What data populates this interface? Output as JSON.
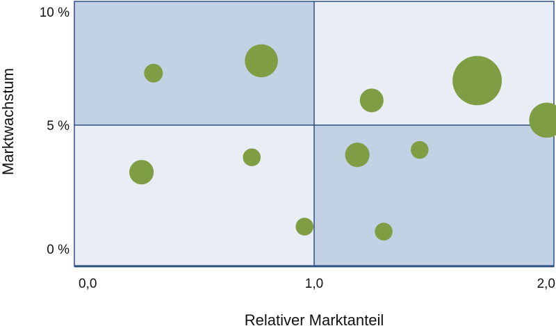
{
  "chart_data": {
    "type": "scatter",
    "variant": "bubble-portfolio-matrix",
    "title": "",
    "xlabel": "Relativer Marktanteil",
    "ylabel": "Marktwachstum",
    "xlim": [
      0,
      2.0
    ],
    "ylim": [
      -0.7,
      10
    ],
    "x_ticks": [
      {
        "value": 0,
        "label": "0,0"
      },
      {
        "value": 1.0,
        "label": "1,0"
      },
      {
        "value": 2.0,
        "label": "2,0"
      }
    ],
    "y_ticks": [
      {
        "value": 0,
        "label": "0 %"
      },
      {
        "value": 5,
        "label": "5 %"
      },
      {
        "value": 10,
        "label": "10 %"
      }
    ],
    "quadrant_split": {
      "x": 1.0,
      "y": 5
    },
    "quadrant_colors": {
      "dark": "#c2d2e4",
      "light": "#e9eef6"
    },
    "quadrant_shading": {
      "top-left": "dark",
      "top-right": "light",
      "bottom-left": "light",
      "bottom-right": "dark"
    },
    "bubble_color": "#7f9e44",
    "frame_color": "#2b4f7e",
    "grid": false,
    "legend": "none",
    "points": [
      {
        "x": 0.33,
        "y": 7.1,
        "size": 1.0
      },
      {
        "x": 0.78,
        "y": 7.6,
        "size": 3.1
      },
      {
        "x": 0.28,
        "y": 3.1,
        "size": 1.7
      },
      {
        "x": 0.74,
        "y": 3.7,
        "size": 0.9
      },
      {
        "x": 0.96,
        "y": 0.9,
        "size": 0.9
      },
      {
        "x": 1.18,
        "y": 3.8,
        "size": 1.7
      },
      {
        "x": 1.24,
        "y": 6.0,
        "size": 1.6
      },
      {
        "x": 1.29,
        "y": 0.7,
        "size": 0.9
      },
      {
        "x": 1.44,
        "y": 4.0,
        "size": 0.9
      },
      {
        "x": 1.68,
        "y": 6.8,
        "size": 6.9
      },
      {
        "x": 1.97,
        "y": 5.2,
        "size": 3.5
      }
    ]
  }
}
